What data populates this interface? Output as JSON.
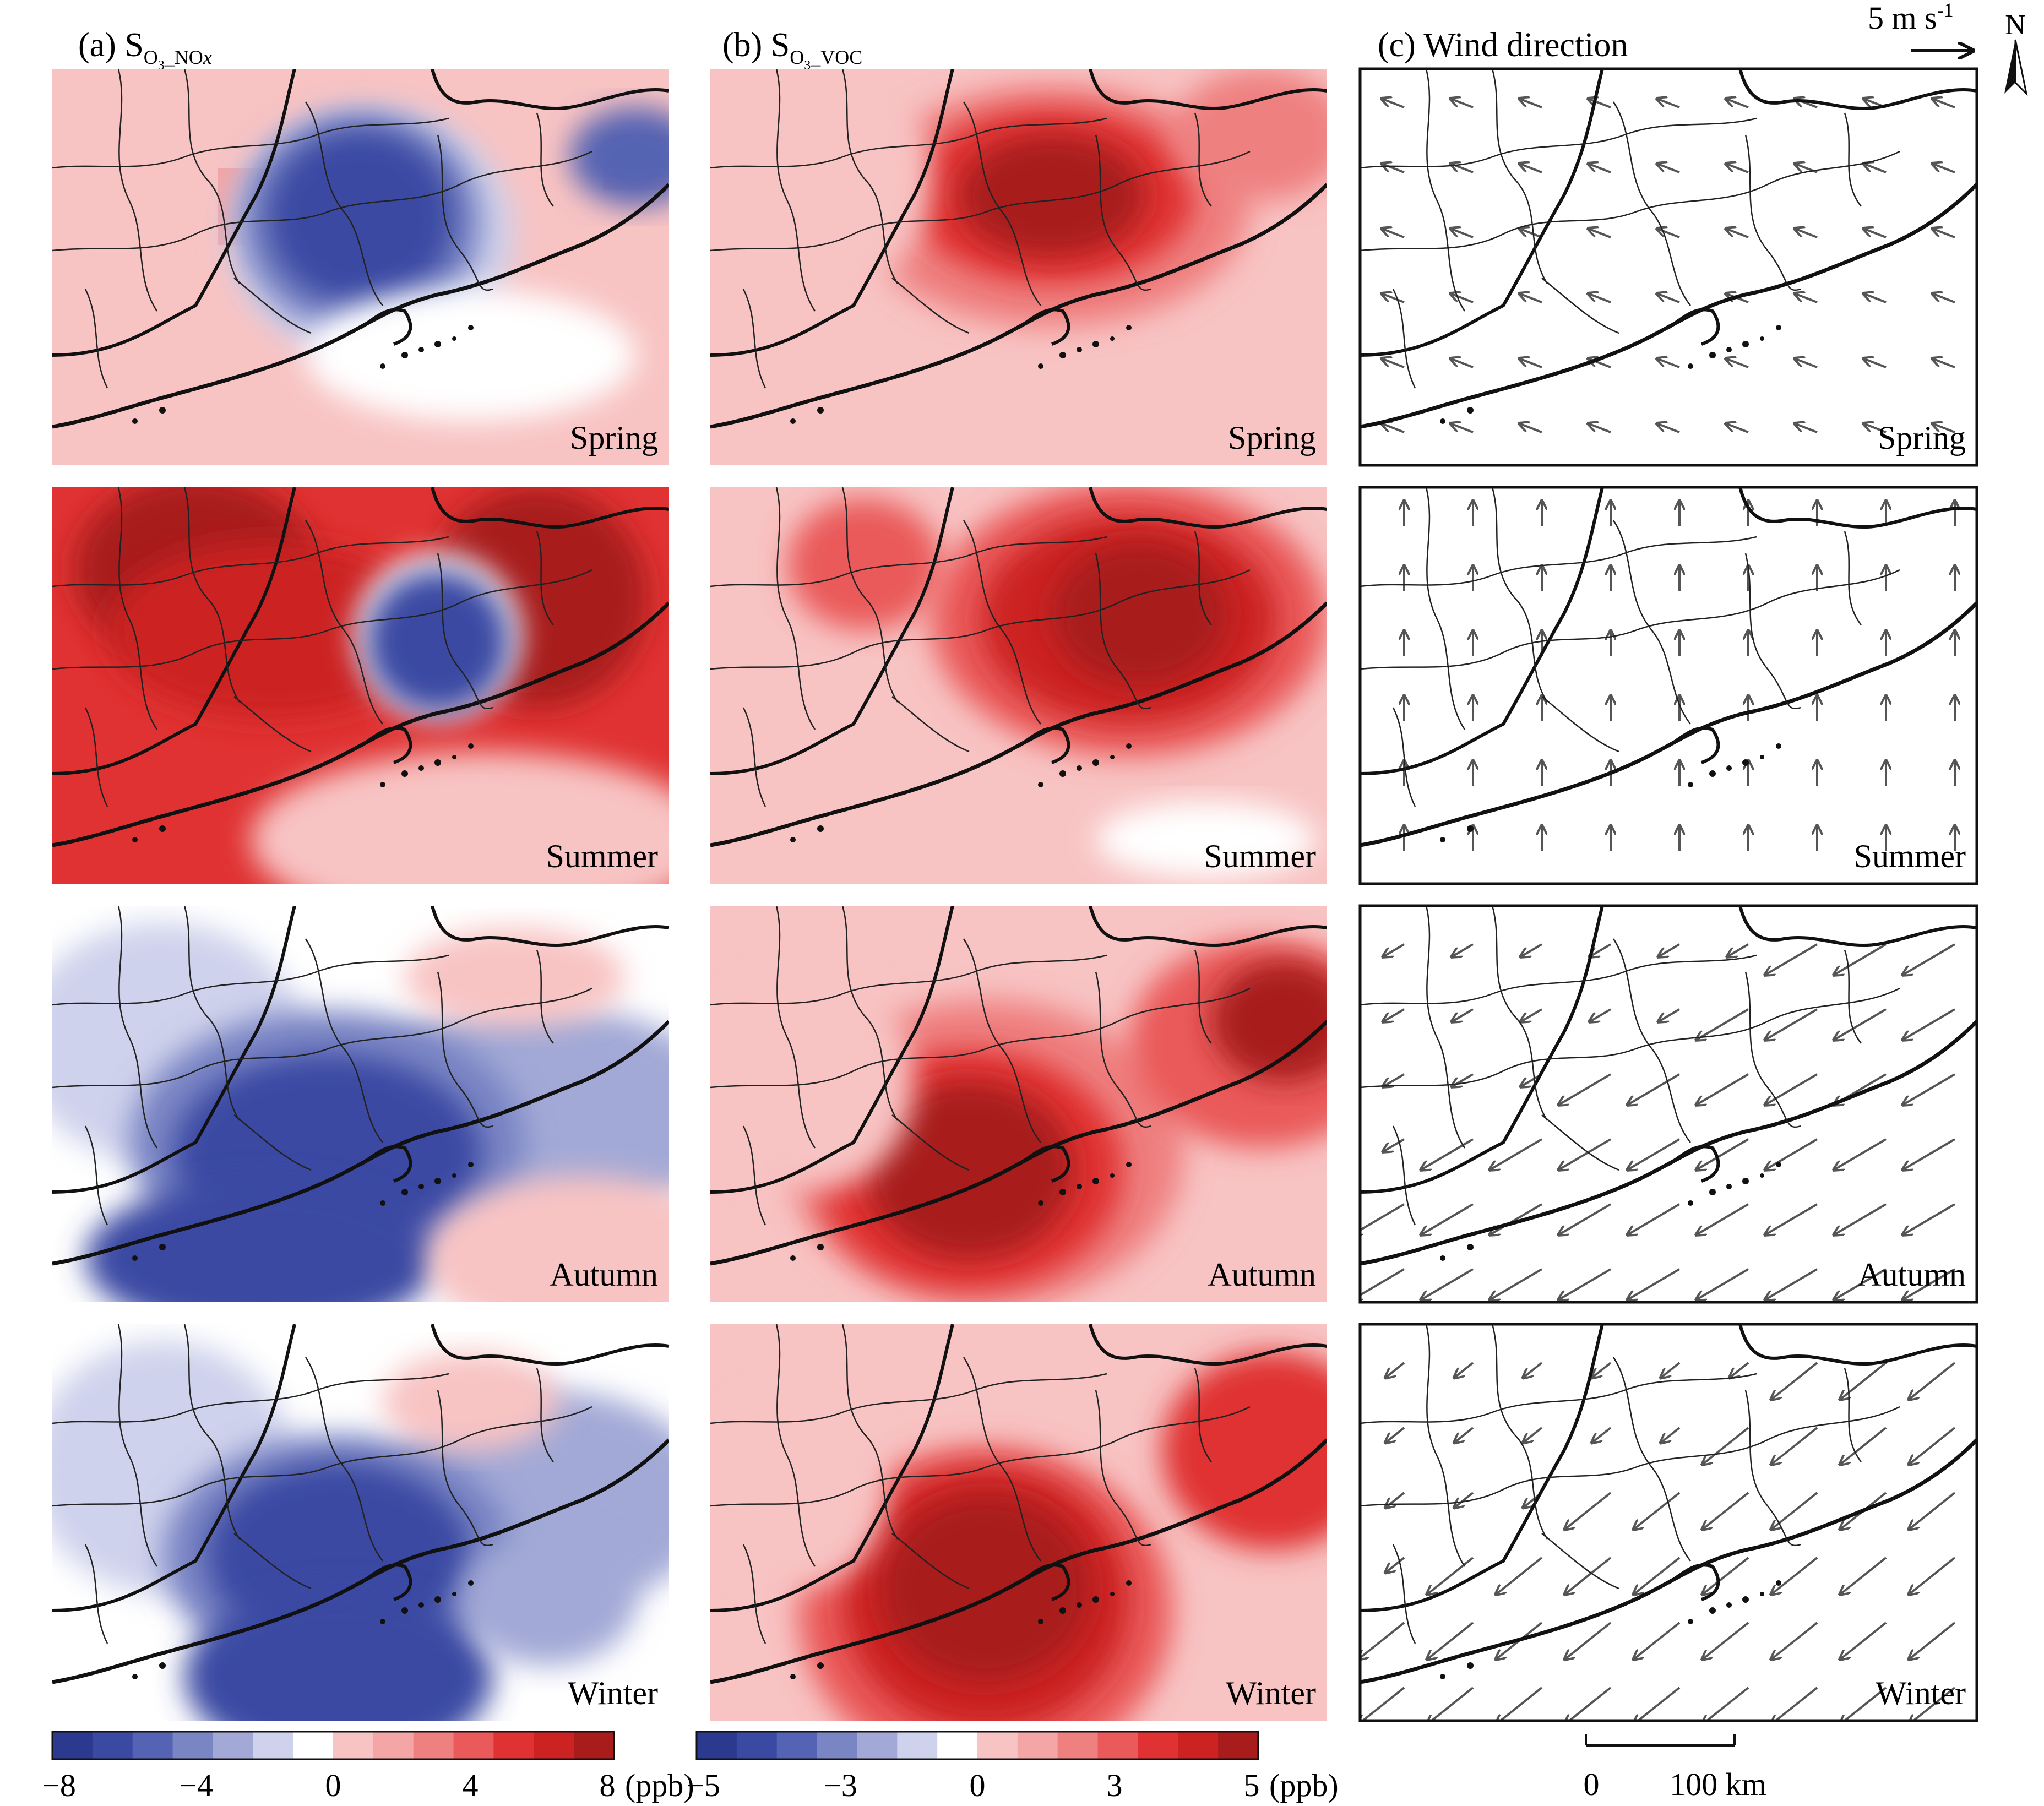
{
  "columns": {
    "a": {
      "label": "(a)",
      "symbol": "S",
      "sub_prefix": "O",
      "sub_digit": "3",
      "sub_suffix": "_NO",
      "sub_italic": "x"
    },
    "b": {
      "label": "(b)",
      "symbol": "S",
      "sub_prefix": "O",
      "sub_digit": "3",
      "sub_suffix": "_VOC"
    },
    "c": {
      "title": "(c) Wind direction"
    }
  },
  "seasons": [
    "Spring",
    "Summer",
    "Autumn",
    "Winter"
  ],
  "wind_reference": {
    "value": "5 m s",
    "exponent": "-1"
  },
  "north_label": "N",
  "scale_bar": {
    "start": "0",
    "end": "100 km"
  },
  "colorbars": {
    "a": {
      "ticks": [
        "−8",
        "−4",
        "0",
        "4",
        "8"
      ],
      "unit": "(ppb)",
      "range": [
        -8,
        8
      ]
    },
    "b": {
      "ticks": [
        "−5",
        "−3",
        "0",
        "3",
        "5"
      ],
      "unit": "(ppb)",
      "range": [
        -5,
        5
      ]
    }
  },
  "palette": {
    "blue": [
      "#2b3a8f",
      "#3a4aa3",
      "#5463b3",
      "#7a85c4",
      "#a2a9d6",
      "#cfd2ec"
    ],
    "white": "#ffffff",
    "red": [
      "#f8c3c3",
      "#f4a5a5",
      "#ef8080",
      "#ea5a5a",
      "#e03232",
      "#cc2222",
      "#a81c1c"
    ]
  },
  "wind_seasons": {
    "Spring": {
      "dir": [
        -0.9,
        -0.35
      ],
      "speed": "moderate"
    },
    "Summer": {
      "dir": [
        0,
        -1
      ],
      "speed": "moderate"
    },
    "Autumn": {
      "dir": [
        -0.85,
        0.5
      ],
      "speed": "strong offshore"
    },
    "Winter": {
      "dir": [
        -0.75,
        0.6
      ],
      "speed": "strong offshore"
    }
  }
}
